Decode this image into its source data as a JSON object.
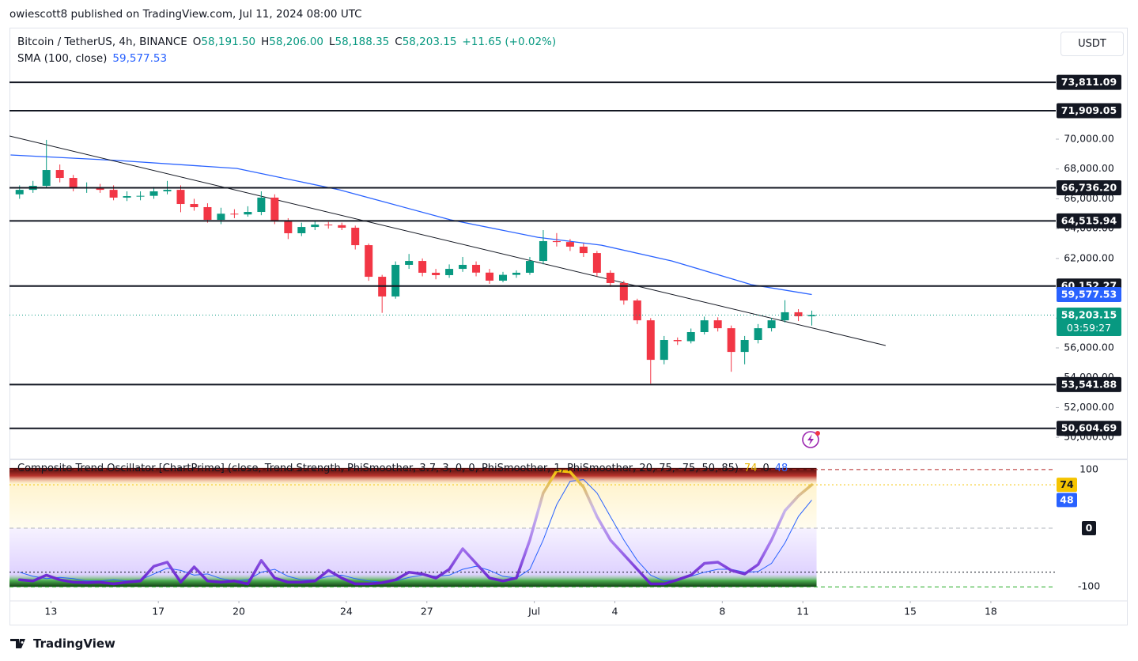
{
  "header": "owiescott8 published on TradingView.com, Jul 11, 2024 08:00 UTC",
  "brand": "TradingView",
  "chart_data": [
    {
      "type": "candlestick",
      "title": "Bitcoin / TetherUS, 4h, BINANCE",
      "currency": "USDT",
      "ohlc_legend": [
        {
          "name": "O",
          "value": 58191.5,
          "label": "58,191.50"
        },
        {
          "name": "H",
          "value": 58206,
          "label": "58,206.00"
        },
        {
          "name": "L",
          "value": 58188.35,
          "label": "58,188.35"
        },
        {
          "name": "C",
          "value": 58203.15,
          "label": "58,203.15"
        }
      ],
      "change": {
        "value": 11.65,
        "label": "+11.65"
      },
      "change_pct": {
        "value": 0.02,
        "label": "(+0.02%)"
      },
      "up_color": "#089981",
      "down_color": "#f23645",
      "x": [
        "2024-06-11T20:00",
        "2024-06-12T08:00",
        "2024-06-12T20:00",
        "2024-06-13T08:00",
        "2024-06-13T20:00",
        "2024-06-14T08:00",
        "2024-06-14T20:00",
        "2024-06-15T08:00",
        "2024-06-15T20:00",
        "2024-06-16T08:00",
        "2024-06-16T20:00",
        "2024-06-17T08:00",
        "2024-06-17T20:00",
        "2024-06-18T08:00",
        "2024-06-18T20:00",
        "2024-06-19T08:00",
        "2024-06-19T20:00",
        "2024-06-20T08:00",
        "2024-06-20T20:00",
        "2024-06-21T08:00",
        "2024-06-21T20:00",
        "2024-06-22T08:00",
        "2024-06-22T20:00",
        "2024-06-23T08:00",
        "2024-06-23T20:00",
        "2024-06-24T08:00",
        "2024-06-24T20:00",
        "2024-06-25T08:00",
        "2024-06-25T20:00",
        "2024-06-26T08:00",
        "2024-06-26T20:00",
        "2024-06-27T08:00",
        "2024-06-27T20:00",
        "2024-06-28T08:00",
        "2024-06-28T20:00",
        "2024-06-29T08:00",
        "2024-06-29T20:00",
        "2024-06-30T08:00",
        "2024-06-30T20:00",
        "2024-07-01T08:00",
        "2024-07-01T20:00",
        "2024-07-02T08:00",
        "2024-07-02T20:00",
        "2024-07-03T08:00",
        "2024-07-03T20:00",
        "2024-07-04T08:00",
        "2024-07-04T20:00",
        "2024-07-05T08:00",
        "2024-07-05T20:00",
        "2024-07-06T08:00",
        "2024-07-06T20:00",
        "2024-07-07T08:00",
        "2024-07-07T20:00",
        "2024-07-08T08:00",
        "2024-07-08T20:00",
        "2024-07-09T08:00",
        "2024-07-09T20:00",
        "2024-07-10T08:00",
        "2024-07-10T20:00",
        "2024-07-11T08:00"
      ],
      "open": [
        66300,
        66600,
        66870,
        67930,
        67400,
        66700,
        66760,
        66600,
        66080,
        66180,
        66200,
        66500,
        66600,
        65650,
        65440,
        64590,
        65000,
        64950,
        65120,
        66080,
        64480,
        63690,
        64110,
        64270,
        64230,
        64060,
        62890,
        60770,
        59450,
        61570,
        61830,
        61040,
        60880,
        61300,
        61570,
        61050,
        60510,
        60900,
        61040,
        61830,
        63160,
        63100,
        62790,
        62360,
        61040,
        60350,
        59180,
        57850,
        55200,
        56530,
        56450,
        57060,
        57850,
        57320,
        55730,
        56530,
        57320,
        57850,
        58390,
        58120
      ],
      "high": [
        66900,
        67200,
        69950,
        68300,
        67600,
        67100,
        67000,
        66900,
        66500,
        66500,
        66800,
        67200,
        66900,
        66000,
        65700,
        65400,
        65300,
        65500,
        66500,
        66300,
        64700,
        64400,
        64500,
        64450,
        64400,
        64200,
        63000,
        60900,
        61800,
        62300,
        62000,
        61300,
        61600,
        62100,
        61800,
        61300,
        61100,
        61200,
        62100,
        63900,
        63700,
        63300,
        63000,
        62500,
        61200,
        60500,
        59300,
        58000,
        56800,
        56700,
        57300,
        58100,
        58050,
        57500,
        56800,
        57600,
        58000,
        59200,
        58600,
        58500
      ],
      "low": [
        66000,
        66400,
        66700,
        67100,
        66500,
        66400,
        66400,
        65900,
        65850,
        65900,
        66000,
        66300,
        65100,
        65200,
        64400,
        64300,
        64700,
        64800,
        64900,
        64300,
        63300,
        63500,
        63900,
        64000,
        63900,
        62600,
        60500,
        58350,
        59300,
        61300,
        60800,
        60600,
        60700,
        61100,
        60800,
        60300,
        60400,
        60700,
        60900,
        61600,
        62800,
        62500,
        62100,
        60800,
        60100,
        58900,
        57600,
        53600,
        54900,
        56200,
        56300,
        56900,
        57100,
        54400,
        54900,
        56300,
        57100,
        57700,
        57800,
        57500
      ],
      "close": [
        66600,
        66870,
        67930,
        67400,
        66700,
        66760,
        66600,
        66080,
        66180,
        66200,
        66500,
        66600,
        65650,
        65440,
        64590,
        65000,
        64950,
        65120,
        66080,
        64480,
        63690,
        64110,
        64270,
        64230,
        64060,
        62890,
        60770,
        59450,
        61570,
        61830,
        61040,
        60880,
        61300,
        61570,
        61050,
        60510,
        60900,
        61040,
        61830,
        63160,
        63100,
        62790,
        62360,
        61040,
        60350,
        59180,
        57850,
        55200,
        56530,
        56450,
        57060,
        57850,
        57320,
        55730,
        56530,
        57320,
        57850,
        58390,
        58120,
        58203.15
      ],
      "indicator": {
        "name": "SMA (100, close)",
        "color": "#2962ff",
        "value": 59577.53,
        "label": "59,577.53",
        "x": [
          "2024-06-11T12:00",
          "2024-06-15T12:00",
          "2024-06-19T22:00",
          "2024-06-23T18:00",
          "2024-06-27T21:00",
          "2024-07-01T03:00",
          "2024-07-03T12:00",
          "2024-07-06T03:00",
          "2024-07-09T02:00",
          "2024-07-11T08:00"
        ],
        "values": [
          68940,
          68570,
          68040,
          66600,
          64590,
          63420,
          62890,
          61830,
          60240,
          59577.53
        ]
      },
      "trendline": {
        "color": "#131722",
        "x": [
          "2024-06-11T11:00",
          "2024-07-14T02:00"
        ],
        "values": [
          70212,
          56159
        ]
      },
      "last_price": {
        "value": 58203.15,
        "label": "58,203.15",
        "countdown": "03:59:27"
      },
      "levels": [
        {
          "value": 73811.09,
          "label": "73,811.09"
        },
        {
          "value": 71909.05,
          "label": "71,909.05"
        },
        {
          "value": 66736.2,
          "label": "66,736.20"
        },
        {
          "value": 64515.94,
          "label": "64,515.94"
        },
        {
          "value": 60152.27,
          "label": "60,152.27"
        },
        {
          "value": 53541.88,
          "label": "53,541.88"
        },
        {
          "value": 50604.69,
          "label": "50,604.69"
        }
      ],
      "level_color": "#131722",
      "xlim": [
        "2024-06-11T11:00",
        "2024-07-20T10:00"
      ],
      "xticks": [
        {
          "value": "2024-06-13T00:00",
          "label": "13"
        },
        {
          "value": "2024-06-17T00:00",
          "label": "17"
        },
        {
          "value": "2024-06-20T00:00",
          "label": "20"
        },
        {
          "value": "2024-06-24T00:00",
          "label": "24"
        },
        {
          "value": "2024-06-27T00:00",
          "label": "27"
        },
        {
          "value": "2024-07-01T00:00",
          "label": "Jul"
        },
        {
          "value": "2024-07-04T00:00",
          "label": "4"
        },
        {
          "value": "2024-07-08T00:00",
          "label": "8"
        },
        {
          "value": "2024-07-11T00:00",
          "label": "11"
        },
        {
          "value": "2024-07-15T00:00",
          "label": "15"
        },
        {
          "value": "2024-07-18T00:00",
          "label": "18"
        }
      ],
      "ylim": [
        48576,
        77477
      ],
      "yticks": [
        {
          "value": 50000,
          "label": "50,000.00"
        },
        {
          "value": 52000,
          "label": "52,000.00"
        },
        {
          "value": 54000,
          "label": "54,000.00"
        },
        {
          "value": 56000,
          "label": "56,000.00"
        },
        {
          "value": 58000,
          "label": "58,000.00"
        },
        {
          "value": 60000,
          "label": "60,000.00"
        },
        {
          "value": 62000,
          "label": "62,000.00"
        },
        {
          "value": 64000,
          "label": "64,000.00"
        },
        {
          "value": 66000,
          "label": "66,000.00"
        },
        {
          "value": 68000,
          "label": "68,000.00"
        },
        {
          "value": 70000,
          "label": "70,000.00"
        }
      ]
    },
    {
      "type": "line",
      "title": "Composite Trend Oscillator [ChartPrime] (close, Trend Strength, PhiSmoother, 3.7, 3, 0, 0, PhiSmoother, 1, PhiSmoother, 20, 75, -75, 50, 85)",
      "legend_values": [
        {
          "value": 74,
          "color": "#e8b400"
        },
        {
          "value": 0,
          "color": "#131722"
        },
        {
          "value": 48,
          "color": "#2962ff"
        }
      ],
      "x": [
        "2024-06-11T20:00",
        "2024-06-12T08:00",
        "2024-06-12T20:00",
        "2024-06-13T08:00",
        "2024-06-13T20:00",
        "2024-06-14T08:00",
        "2024-06-14T20:00",
        "2024-06-15T08:00",
        "2024-06-15T20:00",
        "2024-06-16T08:00",
        "2024-06-16T20:00",
        "2024-06-17T08:00",
        "2024-06-17T20:00",
        "2024-06-18T08:00",
        "2024-06-18T20:00",
        "2024-06-19T08:00",
        "2024-06-19T20:00",
        "2024-06-20T08:00",
        "2024-06-20T20:00",
        "2024-06-21T08:00",
        "2024-06-21T20:00",
        "2024-06-22T08:00",
        "2024-06-22T20:00",
        "2024-06-23T08:00",
        "2024-06-23T20:00",
        "2024-06-24T08:00",
        "2024-06-24T20:00",
        "2024-06-25T08:00",
        "2024-06-25T20:00",
        "2024-06-26T08:00",
        "2024-06-26T20:00",
        "2024-06-27T08:00",
        "2024-06-27T20:00",
        "2024-06-28T08:00",
        "2024-06-28T20:00",
        "2024-06-29T08:00",
        "2024-06-29T20:00",
        "2024-06-30T08:00",
        "2024-06-30T20:00",
        "2024-07-01T08:00",
        "2024-07-01T20:00",
        "2024-07-02T08:00",
        "2024-07-02T20:00",
        "2024-07-03T08:00",
        "2024-07-03T20:00",
        "2024-07-04T08:00",
        "2024-07-04T20:00",
        "2024-07-05T08:00",
        "2024-07-05T20:00",
        "2024-07-06T08:00",
        "2024-07-06T20:00",
        "2024-07-07T08:00",
        "2024-07-07T20:00",
        "2024-07-08T08:00",
        "2024-07-08T20:00",
        "2024-07-09T08:00",
        "2024-07-09T20:00",
        "2024-07-10T08:00",
        "2024-07-10T20:00",
        "2024-07-11T08:00"
      ],
      "series": [
        {
          "color": [
            "#f5c400",
            "#c9b8ea",
            "#a374ee",
            "#5d14c8"
          ],
          "values": [
            -88,
            -90,
            -80,
            -88,
            -92,
            -93,
            -92,
            -95,
            -92,
            -90,
            -65,
            -58,
            -92,
            -66,
            -90,
            -92,
            -90,
            -95,
            -55,
            -85,
            -92,
            -92,
            -90,
            -72,
            -85,
            -95,
            -95,
            -93,
            -88,
            -75,
            -78,
            -85,
            -70,
            -35,
            -60,
            -85,
            -90,
            -85,
            -20,
            60,
            98,
            96,
            70,
            20,
            -20,
            -45,
            -70,
            -95,
            -95,
            -88,
            -80,
            -60,
            -58,
            -72,
            -78,
            -62,
            -20,
            30,
            55,
            74
          ]
        },
        {
          "color": "#2962ff",
          "values": [
            -75,
            -82,
            -86,
            -84,
            -86,
            -90,
            -90,
            -88,
            -90,
            -88,
            -78,
            -68,
            -72,
            -80,
            -78,
            -86,
            -90,
            -88,
            -75,
            -70,
            -82,
            -88,
            -88,
            -82,
            -80,
            -86,
            -90,
            -92,
            -90,
            -84,
            -80,
            -82,
            -80,
            -70,
            -65,
            -72,
            -82,
            -85,
            -70,
            -20,
            40,
            80,
            83,
            60,
            20,
            -20,
            -55,
            -80,
            -90,
            -88,
            -82,
            -75,
            -70,
            -70,
            -75,
            -74,
            -60,
            -25,
            20,
            48
          ]
        }
      ],
      "levels": [
        {
          "value": 100,
          "color": "#b22222",
          "dash": "5 4"
        },
        {
          "value": 0,
          "color": "#b2b5be",
          "dash": "5 4"
        },
        {
          "value": -75,
          "color": "#131722",
          "dash": "2 3"
        },
        {
          "value": -100,
          "color": "#22ab22",
          "dash": "5 4"
        }
      ],
      "ylim": [
        -124,
        116
      ],
      "yticks": [
        100,
        0,
        -100
      ]
    }
  ]
}
